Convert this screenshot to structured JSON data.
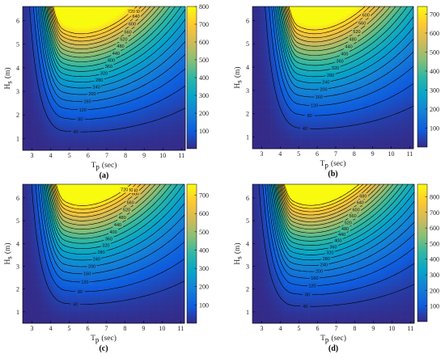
{
  "chart_data": [
    {
      "type": "heatmap",
      "label": "(a)",
      "xlabel": "T",
      "xlabel_sub": "p",
      "xlabel_unit": "(sec)",
      "ylabel": "H",
      "ylabel_sub": "s",
      "ylabel_unit": "(m)",
      "xlim": [
        2.5,
        11.2
      ],
      "ylim": [
        0.5,
        6.6
      ],
      "x_ticks": [
        3,
        4,
        5,
        6,
        7,
        8,
        9,
        10,
        11
      ],
      "y_ticks": [
        1,
        2,
        3,
        4,
        5,
        6
      ],
      "colorbar_ticks": [
        100,
        200,
        300,
        400,
        500,
        600,
        700,
        800
      ],
      "colorbar_range": [
        0,
        800
      ],
      "contour_levels": [
        40,
        80,
        120,
        160,
        200,
        240,
        280,
        320,
        360,
        400,
        440,
        480,
        520,
        560,
        600,
        640,
        680,
        720
      ],
      "contour_label_values": [
        40,
        80,
        120,
        160,
        200,
        240,
        280,
        320,
        360,
        400,
        440,
        480,
        520,
        560,
        600,
        640,
        680,
        720
      ],
      "peak_period": 4.6,
      "peak_value": 820
    },
    {
      "type": "heatmap",
      "label": "(b)",
      "xlabel": "T",
      "xlabel_sub": "p",
      "xlabel_unit": "(sec)",
      "ylabel": "H",
      "ylabel_sub": "s",
      "ylabel_unit": "(m)",
      "xlim": [
        2.5,
        11.2
      ],
      "ylim": [
        0.5,
        6.6
      ],
      "x_ticks": [
        3,
        4,
        5,
        6,
        7,
        8,
        9,
        10,
        11
      ],
      "y_ticks": [
        1,
        2,
        3,
        4,
        5,
        6
      ],
      "colorbar_ticks": [
        100,
        200,
        300,
        400,
        500,
        600,
        700
      ],
      "colorbar_range": [
        0,
        740
      ],
      "contour_levels": [
        40,
        80,
        120,
        160,
        200,
        240,
        280,
        320,
        360,
        400,
        440,
        480,
        520,
        560,
        600,
        640,
        680
      ],
      "contour_label_values": [
        40,
        80,
        120,
        160,
        200,
        240,
        280,
        320,
        360,
        400,
        440,
        480,
        520,
        560,
        600
      ],
      "peak_period": 4.9,
      "peak_value": 740
    },
    {
      "type": "heatmap",
      "label": "(c)",
      "xlabel": "T",
      "xlabel_sub": "p",
      "xlabel_unit": "(sec)",
      "ylabel": "H",
      "ylabel_sub": "s",
      "ylabel_unit": "(m)",
      "xlim": [
        2.5,
        11.2
      ],
      "ylim": [
        0.5,
        6.6
      ],
      "x_ticks": [
        3,
        4,
        5,
        6,
        7,
        8,
        9,
        10,
        11
      ],
      "y_ticks": [
        1,
        2,
        3,
        4,
        5,
        6
      ],
      "colorbar_ticks": [
        100,
        200,
        300,
        400,
        500,
        600,
        700
      ],
      "colorbar_range": [
        0,
        760
      ],
      "contour_levels": [
        40,
        80,
        120,
        160,
        200,
        240,
        280,
        320,
        360,
        400,
        440,
        480,
        520,
        560,
        600,
        640,
        680,
        720
      ],
      "contour_label_values": [
        40,
        80,
        120,
        160,
        200,
        240,
        280,
        320,
        360,
        400,
        440,
        480,
        520,
        560,
        600,
        640,
        680,
        720
      ],
      "peak_period": 4.7,
      "peak_value": 760
    },
    {
      "type": "heatmap",
      "label": "(d)",
      "xlabel": "T",
      "xlabel_sub": "p",
      "xlabel_unit": "(sec)",
      "ylabel": "H",
      "ylabel_sub": "s",
      "ylabel_unit": "(m)",
      "xlim": [
        2.5,
        11.2
      ],
      "ylim": [
        0.5,
        6.6
      ],
      "x_ticks": [
        3,
        4,
        5,
        6,
        7,
        8,
        9,
        10,
        11
      ],
      "y_ticks": [
        1,
        2,
        3,
        4,
        5,
        6
      ],
      "colorbar_ticks": [
        100,
        200,
        300,
        400,
        500,
        600,
        700,
        800
      ],
      "colorbar_range": [
        0,
        880
      ],
      "contour_levels": [
        40,
        80,
        120,
        160,
        200,
        240,
        280,
        320,
        360,
        400,
        440,
        480,
        520,
        560,
        600,
        640,
        680,
        720,
        760,
        800,
        840
      ],
      "contour_label_values": [
        40,
        80,
        120,
        160,
        200,
        240,
        280,
        320,
        360,
        400,
        440,
        480,
        520,
        560,
        600,
        640,
        680
      ],
      "peak_period": 4.6,
      "peak_value": 880
    }
  ],
  "colormap": "parula",
  "colors": {
    "contour_line": "#000000",
    "background": "#ffffff"
  }
}
